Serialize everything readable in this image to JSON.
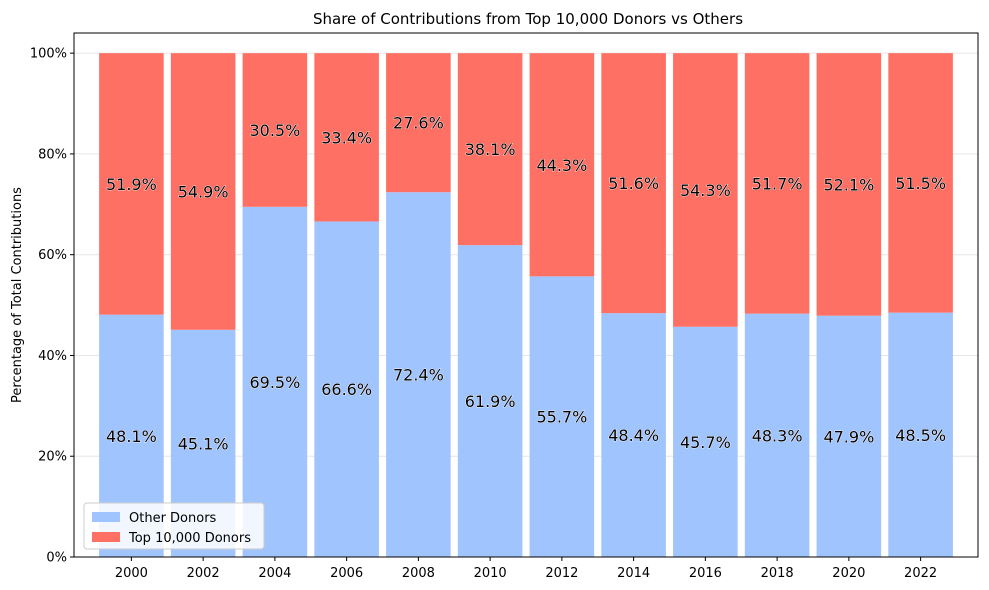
{
  "chart_data": {
    "type": "bar",
    "stacked": true,
    "title": "Share of Contributions from Top 10,000 Donors vs Others",
    "xlabel": "",
    "ylabel": "Percentage of Total Contributions",
    "categories": [
      "2000",
      "2002",
      "2004",
      "2006",
      "2008",
      "2010",
      "2012",
      "2014",
      "2016",
      "2018",
      "2020",
      "2022"
    ],
    "series": [
      {
        "name": "Other Donors",
        "color": "#a0c4fd",
        "values": [
          48.1,
          45.1,
          69.5,
          66.6,
          72.4,
          61.9,
          55.7,
          48.4,
          45.7,
          48.3,
          47.9,
          48.5
        ],
        "labels": [
          "48.1%",
          "45.1%",
          "69.5%",
          "66.6%",
          "72.4%",
          "61.9%",
          "55.7%",
          "48.4%",
          "45.7%",
          "48.3%",
          "47.9%",
          "48.5%"
        ]
      },
      {
        "name": "Top 10,000 Donors",
        "color": "#ff7064",
        "values": [
          51.9,
          54.9,
          30.5,
          33.4,
          27.6,
          38.1,
          44.3,
          51.6,
          54.3,
          51.7,
          52.1,
          51.5
        ],
        "labels": [
          "51.9%",
          "54.9%",
          "30.5%",
          "33.4%",
          "27.6%",
          "38.1%",
          "44.3%",
          "51.6%",
          "54.3%",
          "51.7%",
          "52.1%",
          "51.5%"
        ]
      }
    ],
    "ylim": [
      0,
      104
    ],
    "yticks": [
      0,
      20,
      40,
      60,
      80,
      100
    ],
    "ytick_labels": [
      "0%",
      "20%",
      "40%",
      "60%",
      "80%",
      "100%"
    ],
    "grid": "horizontal",
    "legend_position": "lower-left"
  }
}
